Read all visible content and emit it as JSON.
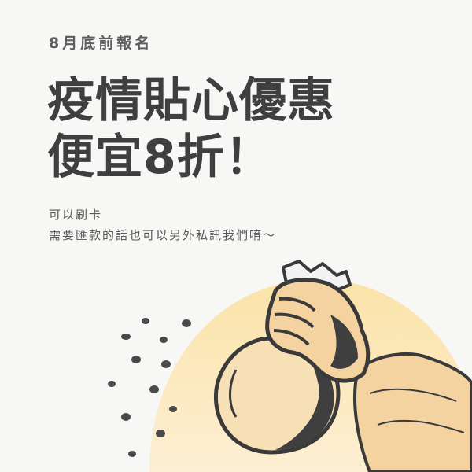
{
  "deadline": "8月底前報名",
  "headline": {
    "line1": "疫情貼心優惠",
    "line2": "便宜8折！"
  },
  "body": {
    "line1": "可以刷卡",
    "line2": "需要匯款的話也可以另外私訊我們唷～"
  },
  "colors": {
    "background": "#f7f7f5",
    "accent_blob": "#fbe3a8",
    "ink": "#3f3f3f"
  },
  "illustration": {
    "icon": "hand-holding-money-bag-icon"
  }
}
